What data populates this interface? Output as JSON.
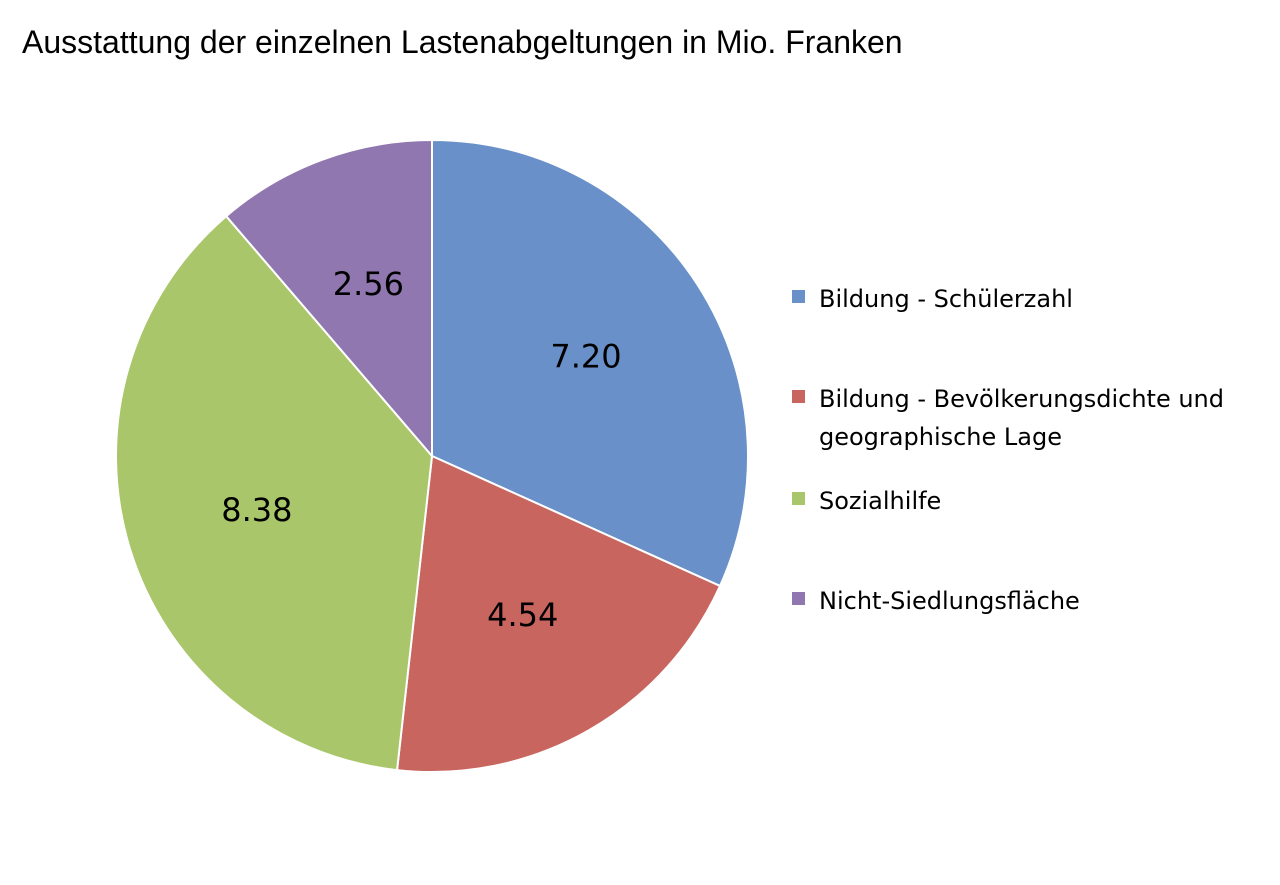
{
  "chart_data": {
    "type": "pie",
    "title": "Ausstattung der einzelnen Lastenabgeltungen in Mio. Franken",
    "slices": [
      {
        "name": "Bildung - Schülerzahl",
        "value": 7.2,
        "label": "7.20",
        "color": "#6990c8"
      },
      {
        "name": "Bildung - Bevölkerungsdichte und geographische Lage",
        "value": 4.54,
        "label": "4.54",
        "color": "#c8655f"
      },
      {
        "name": "Sozialhilfe",
        "value": 8.38,
        "label": "8.38",
        "color": "#a9c66a"
      },
      {
        "name": "Nicht-Siedlungsfläche",
        "value": 2.56,
        "label": "2.56",
        "color": "#9077b0"
      }
    ],
    "legend_position": "right",
    "start_angle_deg": 0,
    "direction": "clockwise"
  }
}
